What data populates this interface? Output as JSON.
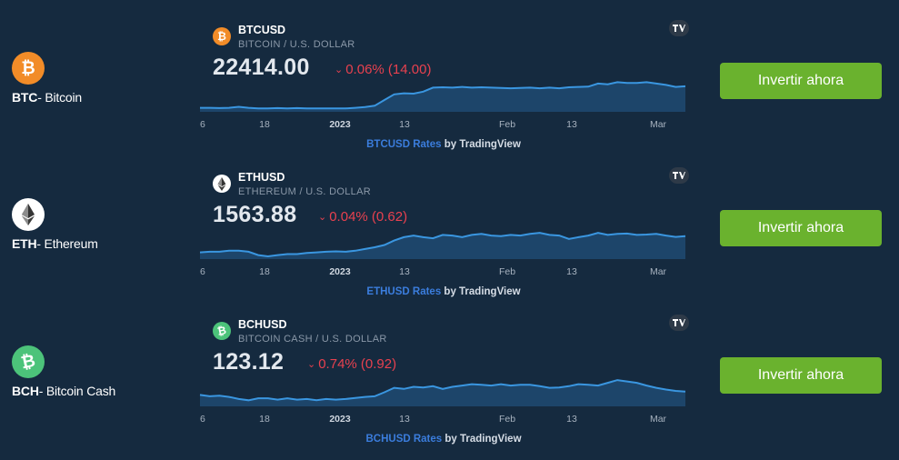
{
  "rows": [
    {
      "coin_symbol": "BTC",
      "coin_name": "- Bitcoin",
      "icon": "bitcoin-icon",
      "icon_color": "#f28c28",
      "widget": {
        "symbol": "BTCUSD",
        "description": "BITCOIN / U.S. DOLLAR",
        "price": "22414.00",
        "change": "0.06% (14.00)",
        "attribution_link": "BTCUSD Rates",
        "attribution_suffix": " by TradingView"
      },
      "button": "Invertir ahora"
    },
    {
      "coin_symbol": "ETH",
      "coin_name": "- Ethereum",
      "icon": "ethereum-icon",
      "icon_color": "#ffffff",
      "widget": {
        "symbol": "ETHUSD",
        "description": "ETHEREUM / U.S. DOLLAR",
        "price": "1563.88",
        "change": "0.04% (0.62)",
        "attribution_link": "ETHUSD Rates",
        "attribution_suffix": " by TradingView"
      },
      "button": "Invertir ahora"
    },
    {
      "coin_symbol": "BCH",
      "coin_name": "- Bitcoin Cash",
      "icon": "bitcoin-cash-icon",
      "icon_color": "#4cc37a",
      "widget": {
        "symbol": "BCHUSD",
        "description": "BITCOIN CASH / U.S. DOLLAR",
        "price": "123.12",
        "change": "0.74% (0.92)",
        "attribution_link": "BCHUSD Rates",
        "attribution_suffix": " by TradingView"
      },
      "button": "Invertir ahora"
    }
  ],
  "chart_data": [
    {
      "type": "area",
      "title": "BTCUSD",
      "tick_labels": [
        "6",
        "18",
        "2023",
        "13",
        "Feb",
        "13",
        "Mar"
      ],
      "values": [
        0.12,
        0.12,
        0.11,
        0.12,
        0.15,
        0.12,
        0.1,
        0.1,
        0.11,
        0.1,
        0.11,
        0.1,
        0.1,
        0.1,
        0.1,
        0.1,
        0.12,
        0.14,
        0.18,
        0.35,
        0.52,
        0.55,
        0.54,
        0.6,
        0.72,
        0.73,
        0.72,
        0.74,
        0.72,
        0.73,
        0.72,
        0.71,
        0.7,
        0.71,
        0.72,
        0.7,
        0.72,
        0.7,
        0.73,
        0.74,
        0.75,
        0.84,
        0.82,
        0.88,
        0.86,
        0.86,
        0.88,
        0.84,
        0.8,
        0.74,
        0.76
      ],
      "color": "#3a96e0"
    },
    {
      "type": "area",
      "title": "ETHUSD",
      "tick_labels": [
        "6",
        "18",
        "2023",
        "13",
        "Feb",
        "13",
        "Mar"
      ],
      "values": [
        0.2,
        0.22,
        0.22,
        0.25,
        0.25,
        0.22,
        0.12,
        0.08,
        0.12,
        0.15,
        0.15,
        0.18,
        0.2,
        0.22,
        0.23,
        0.22,
        0.25,
        0.3,
        0.35,
        0.42,
        0.55,
        0.65,
        0.7,
        0.65,
        0.62,
        0.72,
        0.7,
        0.65,
        0.72,
        0.75,
        0.7,
        0.68,
        0.72,
        0.7,
        0.75,
        0.78,
        0.72,
        0.7,
        0.6,
        0.65,
        0.7,
        0.78,
        0.72,
        0.75,
        0.76,
        0.72,
        0.73,
        0.75,
        0.7,
        0.66,
        0.68
      ],
      "color": "#3a96e0"
    },
    {
      "type": "area",
      "title": "BCHUSD",
      "tick_labels": [
        "6",
        "18",
        "2023",
        "13",
        "Feb",
        "13",
        "Mar"
      ],
      "values": [
        0.34,
        0.3,
        0.32,
        0.28,
        0.22,
        0.18,
        0.24,
        0.24,
        0.2,
        0.24,
        0.2,
        0.22,
        0.18,
        0.22,
        0.2,
        0.22,
        0.25,
        0.28,
        0.3,
        0.42,
        0.55,
        0.52,
        0.58,
        0.56,
        0.6,
        0.52,
        0.58,
        0.62,
        0.66,
        0.64,
        0.62,
        0.66,
        0.62,
        0.64,
        0.64,
        0.6,
        0.55,
        0.56,
        0.6,
        0.66,
        0.64,
        0.62,
        0.7,
        0.78,
        0.74,
        0.7,
        0.62,
        0.55,
        0.5,
        0.46,
        0.44
      ],
      "color": "#3a96e0"
    }
  ]
}
